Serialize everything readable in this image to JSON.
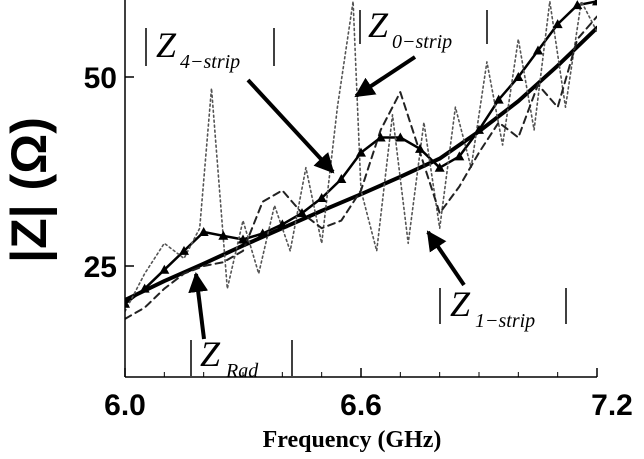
{
  "chart_data": {
    "type": "line",
    "title": "",
    "xlabel": "Frequency (GHz)",
    "ylabel": "|Z| (Ω)",
    "xlim": [
      6.0,
      7.2
    ],
    "ylim": [
      15,
      60
    ],
    "xticks": [
      6.0,
      6.6,
      7.2
    ],
    "xtick_labels": [
      "6.0",
      "6.6",
      "7.2"
    ],
    "yticks": [
      25,
      50
    ],
    "ytick_labels": [
      "25",
      "50"
    ],
    "grid": false,
    "legend": "none",
    "series": [
      {
        "name": "Z_Rad",
        "style": "solid-thick",
        "color": "#000000",
        "x": [
          6.0,
          6.1,
          6.2,
          6.3,
          6.4,
          6.5,
          6.6,
          6.7,
          6.8,
          6.9,
          7.0,
          7.1,
          7.2
        ],
        "y": [
          20.5,
          23.0,
          25.3,
          27.7,
          30.0,
          32.3,
          34.5,
          36.8,
          39.2,
          42.8,
          46.8,
          51.5,
          56.5
        ]
      },
      {
        "name": "Z_4-strip",
        "style": "line-with-triangles",
        "color": "#000000",
        "x": [
          6.0,
          6.05,
          6.1,
          6.15,
          6.2,
          6.25,
          6.3,
          6.35,
          6.4,
          6.45,
          6.5,
          6.55,
          6.6,
          6.65,
          6.7,
          6.75,
          6.8,
          6.85,
          6.9,
          6.95,
          7.0,
          7.05,
          7.1,
          7.15,
          7.2
        ],
        "y": [
          20.0,
          22.0,
          24.5,
          27.0,
          29.5,
          29.0,
          28.5,
          29.3,
          30.5,
          32.0,
          34.0,
          36.5,
          40.0,
          42.0,
          42.0,
          40.5,
          38.0,
          39.5,
          43.0,
          47.0,
          50.0,
          53.5,
          57.0,
          59.5,
          60.0
        ]
      },
      {
        "name": "Z_0-strip",
        "style": "dotted",
        "color": "#555555",
        "x": [
          6.0,
          6.05,
          6.1,
          6.15,
          6.19,
          6.22,
          6.26,
          6.3,
          6.34,
          6.38,
          6.42,
          6.46,
          6.5,
          6.54,
          6.58,
          6.6,
          6.64,
          6.68,
          6.72,
          6.76,
          6.8,
          6.84,
          6.88,
          6.92,
          6.96,
          7.0,
          7.04,
          7.08,
          7.12,
          7.16,
          7.2
        ],
        "y": [
          19.0,
          24.0,
          28.0,
          26.0,
          30.0,
          48.5,
          22.0,
          31.0,
          24.0,
          33.0,
          27.0,
          38.0,
          28.0,
          46.0,
          60.0,
          35.0,
          27.0,
          45.0,
          28.0,
          44.0,
          30.0,
          46.0,
          38.0,
          52.0,
          41.0,
          55.0,
          43.0,
          60.0,
          46.0,
          60.0,
          56.0
        ]
      },
      {
        "name": "Z_1-strip",
        "style": "dashed",
        "color": "#222222",
        "x": [
          6.0,
          6.05,
          6.1,
          6.15,
          6.2,
          6.25,
          6.3,
          6.35,
          6.4,
          6.45,
          6.5,
          6.55,
          6.6,
          6.65,
          6.7,
          6.75,
          6.8,
          6.85,
          6.9,
          6.95,
          7.0,
          7.05,
          7.1,
          7.15,
          7.2
        ],
        "y": [
          18.0,
          19.5,
          22.0,
          24.0,
          25.0,
          25.5,
          27.0,
          33.5,
          35.0,
          32.0,
          30.0,
          31.0,
          35.0,
          43.0,
          48.0,
          40.0,
          32.0,
          35.5,
          40.0,
          44.0,
          42.0,
          49.0,
          46.0,
          55.0,
          58.0
        ]
      }
    ],
    "annotations": [
      {
        "main": "Z",
        "sub": "4−strip"
      },
      {
        "main": "Z",
        "sub": "0−strip"
      },
      {
        "main": "Z",
        "sub": "1−strip"
      },
      {
        "main": "Z",
        "sub": "Rad"
      }
    ]
  }
}
